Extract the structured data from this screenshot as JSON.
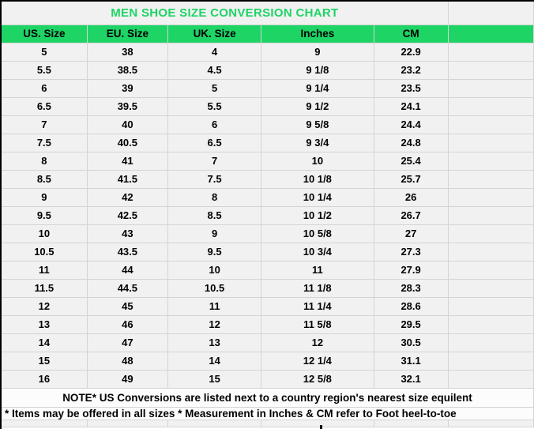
{
  "title": "MEN SHOE SIZE CONVERSION CHART",
  "table": {
    "headers": [
      "US. Size",
      "EU. Size",
      "UK. Size",
      "Inches",
      "CM"
    ],
    "rows": [
      [
        "5",
        "38",
        "4",
        "9",
        "22.9"
      ],
      [
        "5.5",
        "38.5",
        "4.5",
        "9 1/8",
        "23.2"
      ],
      [
        "6",
        "39",
        "5",
        "9 1/4",
        "23.5"
      ],
      [
        "6.5",
        "39.5",
        "5.5",
        "9 1/2",
        "24.1"
      ],
      [
        "7",
        "40",
        "6",
        "9 5/8",
        "24.4"
      ],
      [
        "7.5",
        "40.5",
        "6.5",
        "9 3/4",
        "24.8"
      ],
      [
        "8",
        "41",
        "7",
        "10",
        "25.4"
      ],
      [
        "8.5",
        "41.5",
        "7.5",
        "10 1/8",
        "25.7"
      ],
      [
        "9",
        "42",
        "8",
        "10 1/4",
        "26"
      ],
      [
        "9.5",
        "42.5",
        "8.5",
        "10 1/2",
        "26.7"
      ],
      [
        "10",
        "43",
        "9",
        "10 5/8",
        "27"
      ],
      [
        "10.5",
        "43.5",
        "9.5",
        "10 3/4",
        "27.3"
      ],
      [
        "11",
        "44",
        "10",
        "11",
        "27.9"
      ],
      [
        "11.5",
        "44.5",
        "10.5",
        "11 1/8",
        "28.3"
      ],
      [
        "12",
        "45",
        "11",
        "11 1/4",
        "28.6"
      ],
      [
        "13",
        "46",
        "12",
        "11 5/8",
        "29.5"
      ],
      [
        "14",
        "47",
        "13",
        "12",
        "30.5"
      ],
      [
        "15",
        "48",
        "14",
        "12 1/4",
        "31.1"
      ],
      [
        "16",
        "49",
        "15",
        "12 5/8",
        "32.1"
      ]
    ]
  },
  "notes": [
    "NOTE* US Conversions are listed next to a country region's nearest size equilent",
    "* Items may be offered in all sizes * Measurement in Inches & CM refer to Foot heel-to-toe"
  ],
  "colors": {
    "accent_green": "#1dd465",
    "gridline": "#d4d4d4",
    "cell_background": "#f1f1f1",
    "note_background": "#fcfcfc",
    "text": "#000000",
    "outer_border": "#000000"
  }
}
